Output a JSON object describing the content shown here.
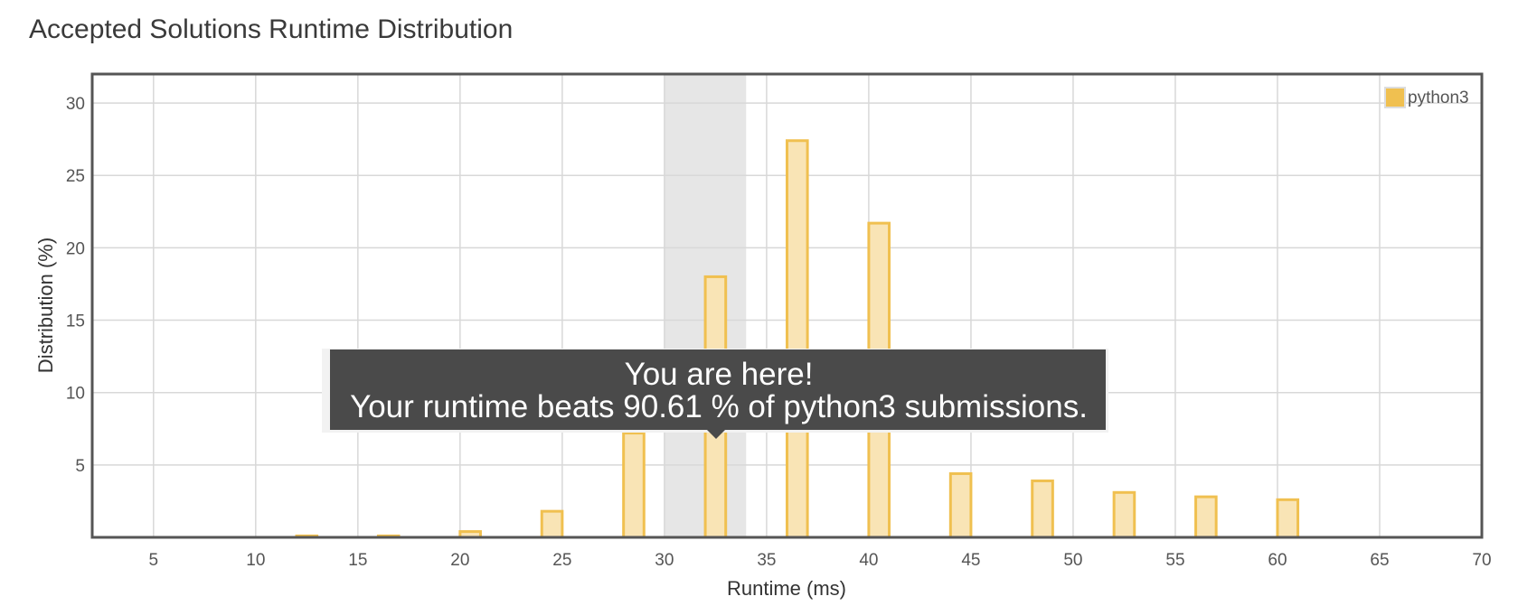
{
  "page": {
    "title": "Accepted Solutions Runtime Distribution"
  },
  "tooltip": {
    "line1": "You are here!",
    "line2": "Your runtime beats 90.61 % of python3 submissions."
  },
  "chart_data": {
    "type": "bar",
    "title": "Accepted Solutions Runtime Distribution",
    "xlabel": "Runtime (ms)",
    "ylabel": "Distribution (%)",
    "xlim": [
      2,
      70
    ],
    "ylim": [
      0,
      32
    ],
    "x_ticks": [
      5,
      10,
      15,
      20,
      25,
      30,
      35,
      40,
      45,
      50,
      55,
      60,
      65,
      70
    ],
    "y_ticks": [
      5,
      10,
      15,
      20,
      25,
      30
    ],
    "grid": true,
    "legend_position": "top-right",
    "highlight_range": [
      30,
      34
    ],
    "colors": {
      "bar_fill": "#f9e4b5",
      "bar_stroke": "#f0c050",
      "legend_swatch": "#f0c050",
      "highlight": "#e6e6e6",
      "tooltip_bg": "#4a4a4a"
    },
    "series": [
      {
        "name": "python3",
        "x": [
          12.5,
          16.5,
          20.5,
          24.5,
          28.5,
          32.5,
          36.5,
          40.5,
          44.5,
          48.5,
          52.5,
          56.5,
          60.5
        ],
        "values": [
          0.1,
          0.1,
          0.4,
          1.8,
          7.2,
          18.0,
          27.4,
          21.7,
          4.4,
          3.9,
          3.1,
          2.8,
          2.6
        ]
      }
    ]
  }
}
